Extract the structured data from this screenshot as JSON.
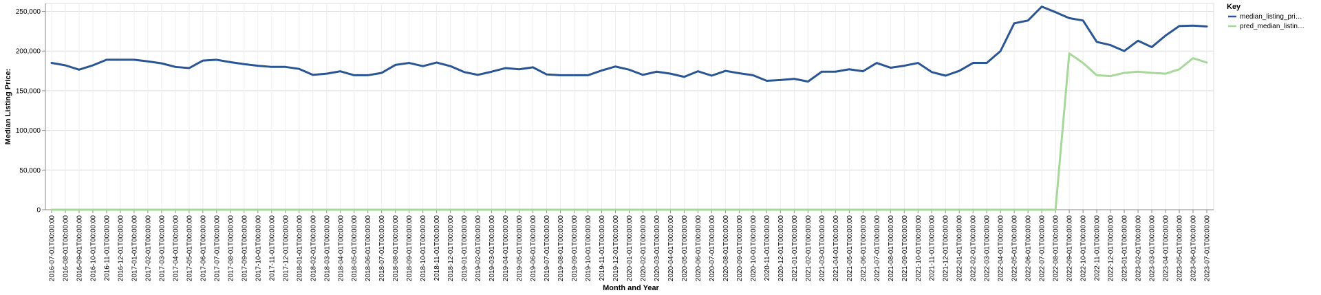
{
  "chart_data": {
    "type": "line",
    "xlabel": "Month and Year",
    "ylabel": "Median Listing Price:",
    "ylim": [
      0,
      260000
    ],
    "y_ticks": [
      0,
      50000,
      100000,
      150000,
      200000,
      250000
    ],
    "y_tick_labels": [
      "0",
      "50,000",
      "100,000",
      "150,000",
      "200,000",
      "250,000"
    ],
    "grid": true,
    "legend_position": "top-right",
    "legend": {
      "title": "Key",
      "entries": [
        {
          "name": "median_listing_pri…",
          "color": "#2a5594"
        },
        {
          "name": "pred_median_listin…",
          "color": "#a6d89a"
        }
      ]
    },
    "x": [
      "2016-07-01T00:00:00",
      "2016-08-01T00:00:00",
      "2016-09-01T00:00:00",
      "2016-10-01T00:00:00",
      "2016-11-01T00:00:00",
      "2016-12-01T00:00:00",
      "2017-01-01T00:00:00",
      "2017-02-01T00:00:00",
      "2017-03-01T00:00:00",
      "2017-04-01T00:00:00",
      "2017-05-01T00:00:00",
      "2017-06-01T00:00:00",
      "2017-07-01T00:00:00",
      "2017-08-01T00:00:00",
      "2017-09-01T00:00:00",
      "2017-10-01T00:00:00",
      "2017-11-01T00:00:00",
      "2017-12-01T00:00:00",
      "2018-01-01T00:00:00",
      "2018-02-01T00:00:00",
      "2018-03-01T00:00:00",
      "2018-04-01T00:00:00",
      "2018-05-01T00:00:00",
      "2018-06-01T00:00:00",
      "2018-07-01T00:00:00",
      "2018-08-01T00:00:00",
      "2018-09-01T00:00:00",
      "2018-10-01T00:00:00",
      "2018-11-01T00:00:00",
      "2018-12-01T00:00:00",
      "2019-01-01T00:00:00",
      "2019-02-01T00:00:00",
      "2019-03-01T00:00:00",
      "2019-04-01T00:00:00",
      "2019-05-01T00:00:00",
      "2019-06-01T00:00:00",
      "2019-07-01T00:00:00",
      "2019-08-01T00:00:00",
      "2019-09-01T00:00:00",
      "2019-10-01T00:00:00",
      "2019-11-01T00:00:00",
      "2019-12-01T00:00:00",
      "2020-01-01T00:00:00",
      "2020-02-01T00:00:00",
      "2020-03-01T00:00:00",
      "2020-04-01T00:00:00",
      "2020-05-01T00:00:00",
      "2020-06-01T00:00:00",
      "2020-07-01T00:00:00",
      "2020-08-01T00:00:00",
      "2020-09-01T00:00:00",
      "2020-10-01T00:00:00",
      "2020-11-01T00:00:00",
      "2020-12-01T00:00:00",
      "2021-01-01T00:00:00",
      "2021-02-01T00:00:00",
      "2021-03-01T00:00:00",
      "2021-04-01T00:00:00",
      "2021-05-01T00:00:00",
      "2021-06-01T00:00:00",
      "2021-07-01T00:00:00",
      "2021-08-01T00:00:00",
      "2021-09-01T00:00:00",
      "2021-10-01T00:00:00",
      "2021-11-01T00:00:00",
      "2021-12-01T00:00:00",
      "2022-01-01T00:00:00",
      "2022-02-01T00:00:00",
      "2022-03-01T00:00:00",
      "2022-04-01T00:00:00",
      "2022-05-01T00:00:00",
      "2022-06-01T00:00:00",
      "2022-07-01T00:00:00",
      "2022-08-01T00:00:00",
      "2022-09-01T00:00:00",
      "2022-10-01T00:00:00",
      "2022-11-01T00:00:00",
      "2022-12-01T00:00:00",
      "2023-01-01T00:00:00",
      "2023-02-01T00:00:00",
      "2023-03-01T00:00:00",
      "2023-04-01T00:00:00",
      "2023-05-01T00:00:00",
      "2023-06-01T00:00:00",
      "2023-07-01T00:00:00"
    ],
    "series": [
      {
        "name": "median_listing_pri…",
        "color": "#2a5594",
        "values": [
          185000,
          182000,
          176500,
          182000,
          189000,
          189000,
          189000,
          187000,
          184500,
          180000,
          178500,
          188000,
          189000,
          186000,
          183500,
          181500,
          180000,
          180000,
          177500,
          170000,
          171500,
          174500,
          169500,
          169500,
          172500,
          182500,
          185000,
          181000,
          185500,
          181000,
          173500,
          170000,
          174000,
          178500,
          177000,
          179500,
          170500,
          169500,
          169500,
          169500,
          175500,
          180500,
          176500,
          170000,
          174000,
          171500,
          167500,
          174500,
          169000,
          175000,
          172000,
          169500,
          162500,
          163500,
          165000,
          161500,
          174000,
          174000,
          177000,
          174500,
          185000,
          179000,
          181500,
          185000,
          173500,
          169000,
          175000,
          185000,
          185000,
          200000,
          235000,
          238500,
          256000,
          249000,
          241500,
          238500,
          211500,
          207500,
          200000,
          213000,
          205000,
          219500,
          231500,
          232000,
          231000
        ]
      },
      {
        "name": "pred_median_listin…",
        "color": "#a6d89a",
        "values": [
          0,
          0,
          0,
          0,
          0,
          0,
          0,
          0,
          0,
          0,
          0,
          0,
          0,
          0,
          0,
          0,
          0,
          0,
          0,
          0,
          0,
          0,
          0,
          0,
          0,
          0,
          0,
          0,
          0,
          0,
          0,
          0,
          0,
          0,
          0,
          0,
          0,
          0,
          0,
          0,
          0,
          0,
          0,
          0,
          0,
          0,
          0,
          0,
          0,
          0,
          0,
          0,
          0,
          0,
          0,
          0,
          0,
          0,
          0,
          0,
          0,
          0,
          0,
          0,
          0,
          0,
          0,
          0,
          0,
          0,
          0,
          0,
          0,
          0,
          197000,
          185000,
          169500,
          168500,
          172500,
          174000,
          172500,
          171500,
          177000,
          191000,
          185500
        ]
      }
    ]
  }
}
